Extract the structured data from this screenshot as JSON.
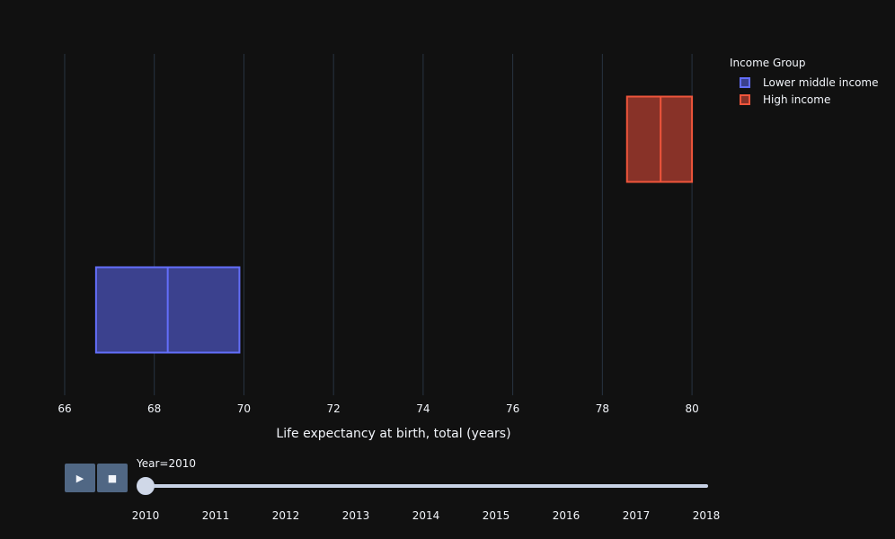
{
  "chart_data": {
    "type": "box",
    "title": "",
    "xlabel": "Life expectancy at birth, total (years)",
    "ylabel": "",
    "xlim": [
      65.8,
      80.6
    ],
    "xticks": [
      66,
      68,
      70,
      72,
      74,
      76,
      78,
      80
    ],
    "grid": true,
    "legend_title": "Income Group",
    "legend_position": "top-right",
    "series": [
      {
        "name": "Lower middle income",
        "q1": 66.7,
        "median": 68.3,
        "q3": 69.9,
        "color": "#636efa",
        "fill": "#3b418e"
      },
      {
        "name": "High income",
        "q1": 78.55,
        "median": 79.3,
        "q3": 80.0,
        "color": "#ef553b",
        "fill": "#883228"
      }
    ]
  },
  "slider": {
    "label": "Year=2010",
    "current": "2010",
    "steps": [
      "2010",
      "2011",
      "2012",
      "2013",
      "2014",
      "2015",
      "2016",
      "2017",
      "2018"
    ]
  },
  "controls": {
    "play_icon": "▶",
    "stop_icon": "■"
  }
}
